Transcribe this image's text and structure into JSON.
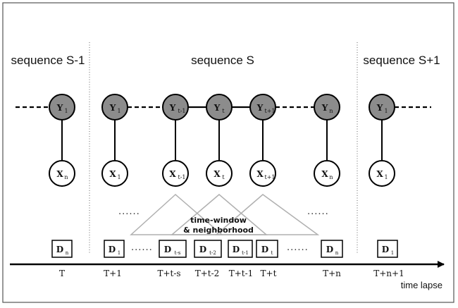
{
  "diagram": {
    "sequences": [
      {
        "id": "prev",
        "title": "sequence S-1"
      },
      {
        "id": "curr",
        "title": "sequence S"
      },
      {
        "id": "next",
        "title": "sequence S+1"
      }
    ],
    "y_nodes": [
      {
        "id": "y-prev",
        "main": "Y",
        "sub": "1"
      },
      {
        "id": "y-s-1",
        "main": "Y",
        "sub": "1"
      },
      {
        "id": "y-s-t-1",
        "main": "Y",
        "sub": "t-1"
      },
      {
        "id": "y-s-t",
        "main": "Y",
        "sub": "t"
      },
      {
        "id": "y-s-t+1",
        "main": "Y",
        "sub": "t+1"
      },
      {
        "id": "y-s-n",
        "main": "Y",
        "sub": "n"
      },
      {
        "id": "y-next",
        "main": "Y",
        "sub": "1"
      }
    ],
    "x_nodes": [
      {
        "id": "x-prev",
        "main": "X",
        "sub": "n"
      },
      {
        "id": "x-s-1",
        "main": "X",
        "sub": "1"
      },
      {
        "id": "x-s-t-1",
        "main": "X",
        "sub": "t-1"
      },
      {
        "id": "x-s-t",
        "main": "X",
        "sub": "t"
      },
      {
        "id": "x-s-t+1",
        "main": "X",
        "sub": "t+1"
      },
      {
        "id": "x-s-n",
        "main": "X",
        "sub": "n"
      },
      {
        "id": "x-next",
        "main": "X",
        "sub": "1"
      }
    ],
    "d_boxes": [
      {
        "id": "d-prev",
        "main": "D",
        "sub": "n"
      },
      {
        "id": "d-s-1",
        "main": "D",
        "sub": "1"
      },
      {
        "id": "d-s-t-s",
        "main": "D",
        "sub": "t-s"
      },
      {
        "id": "d-s-t-2",
        "main": "D",
        "sub": "t-2"
      },
      {
        "id": "d-s-t-1",
        "main": "D",
        "sub": "t-1"
      },
      {
        "id": "d-s-t",
        "main": "D",
        "sub": "t"
      },
      {
        "id": "d-s-n",
        "main": "D",
        "sub": "n"
      },
      {
        "id": "d-next",
        "main": "D",
        "sub": "1"
      }
    ],
    "time_labels": [
      "T",
      "T+1",
      "T+t-s",
      "T+t-2",
      "T+t-1",
      "T+t",
      "T+n",
      "T+n+1"
    ],
    "ellipsis": "......",
    "window_label_line1": "time-window",
    "window_label_line2": "& neighborhood",
    "axis_label": "time lapse",
    "colors": {
      "y_fill": "#8c8c8c",
      "x_fill": "#ffffff",
      "stroke": "#000000",
      "window": "#b0b0b0",
      "border": "#555555"
    }
  }
}
